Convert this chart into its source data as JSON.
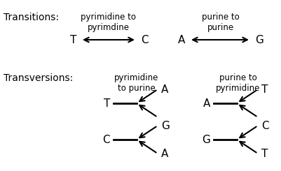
{
  "bg_color": "#ffffff",
  "fs_title": 10,
  "fs_label": 8.5,
  "fs_letter": 11,
  "transitions_label": "Transitions:",
  "transversions_label": "Transversions:",
  "pyr_to_pyr_label": "pyrimidine to\npyrimdine",
  "pur_to_pur_label": "purine to\npurine",
  "pyr_to_pur_label": "pyrimidine\nto purine",
  "pur_to_pyr_label": "purine to\npyrimidine"
}
